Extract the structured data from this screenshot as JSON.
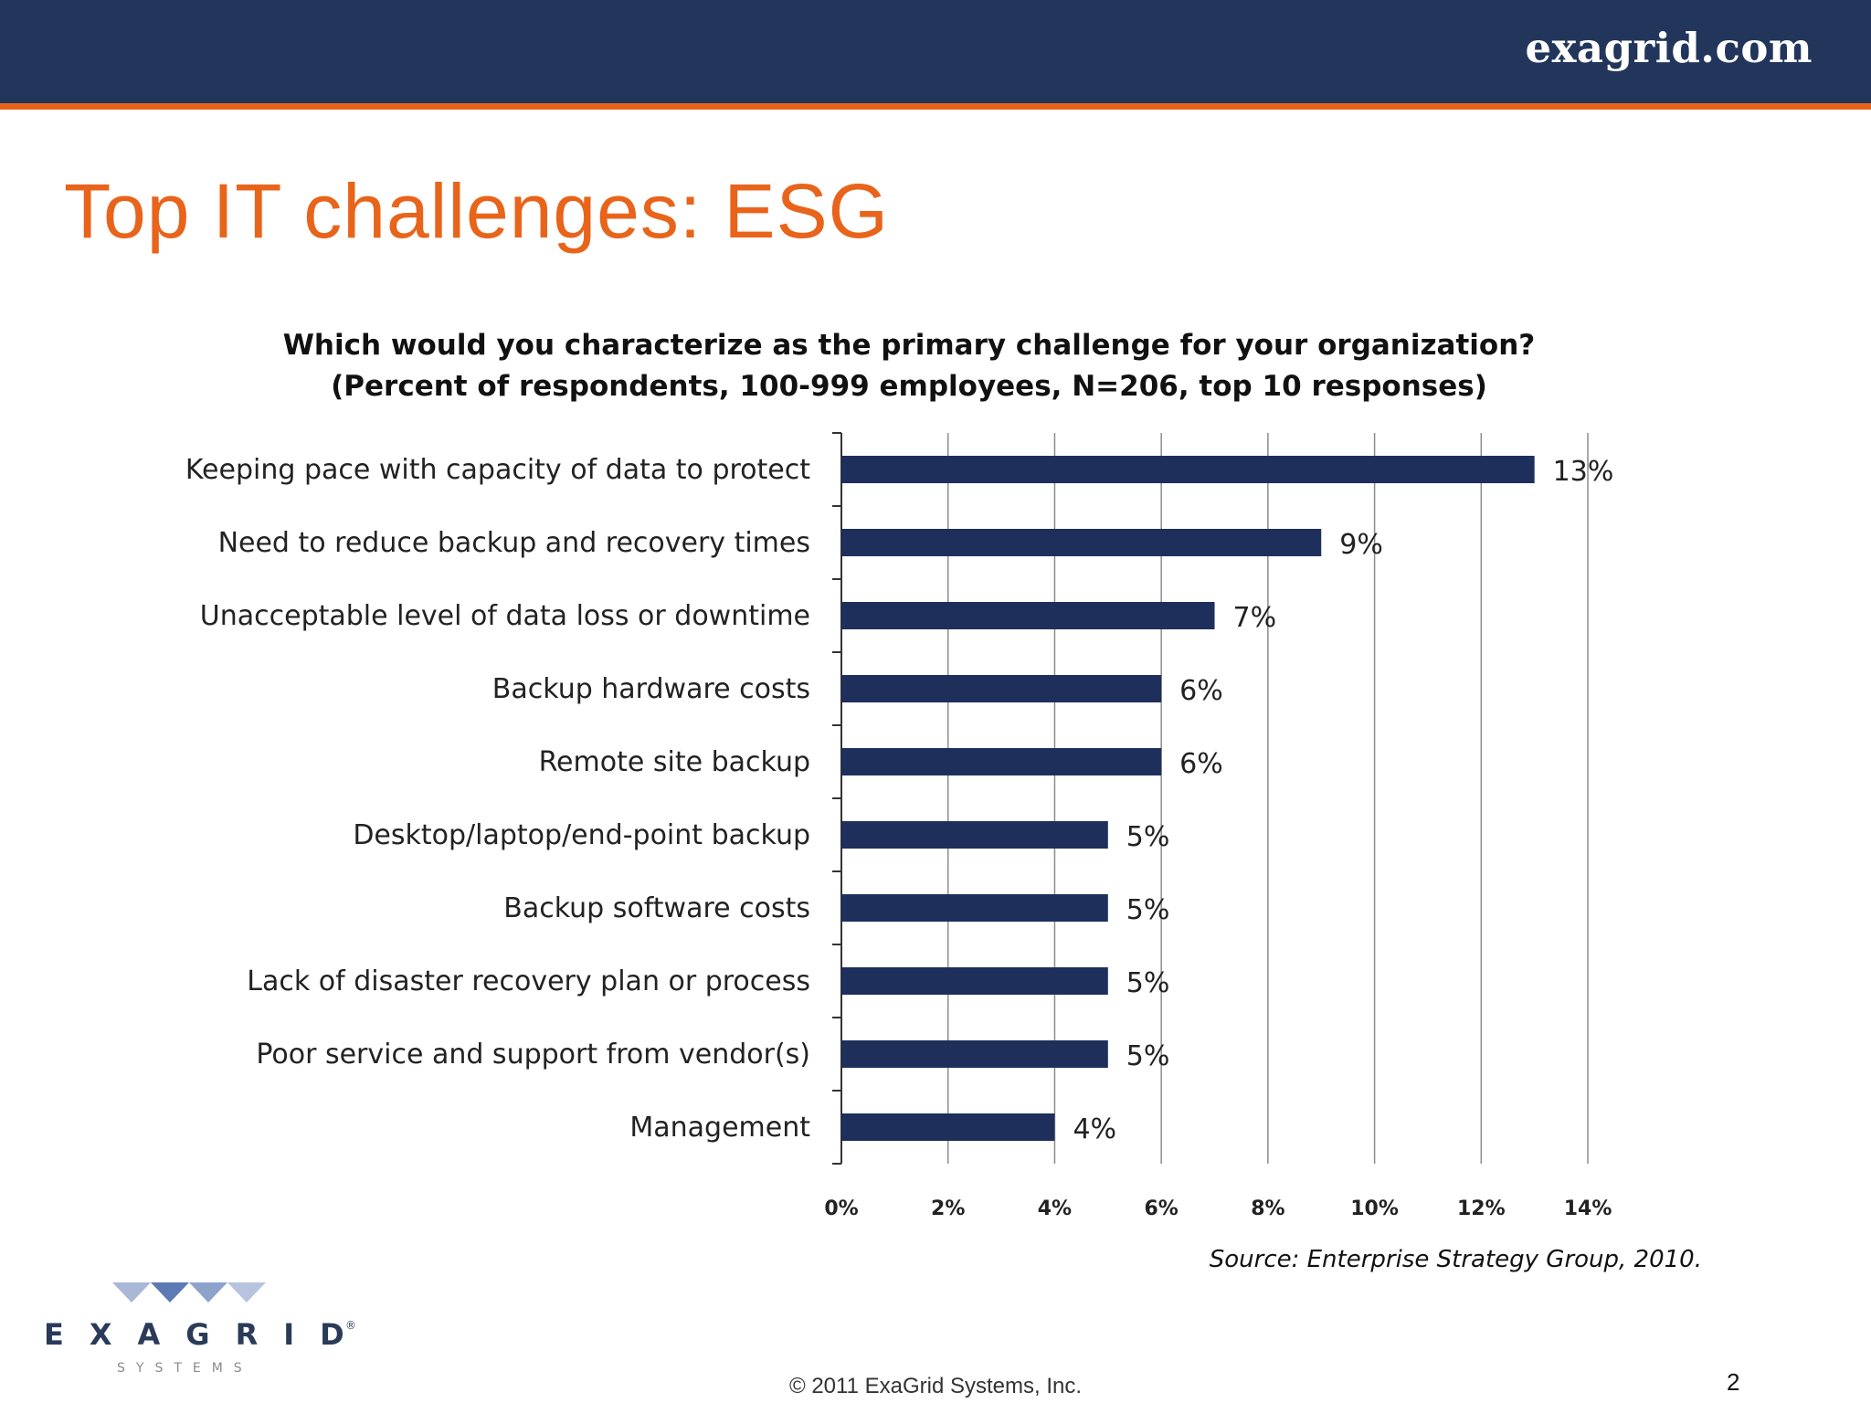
{
  "header": {
    "site_url": "exagrid.com",
    "colors": {
      "bar": "#22365c",
      "accent_stripe": "#e8641b"
    }
  },
  "slide": {
    "title": "Top IT challenges: ESG",
    "title_color": "#e8641b",
    "source": "Source: Enterprise Strategy Group, 2010.",
    "copyright": "© 2011 ExaGrid Systems, Inc.",
    "page_number": "2"
  },
  "logo": {
    "wordmark": "EXAGRID",
    "tagline": "SYSTEMS",
    "registered": "®"
  },
  "chart_data": {
    "type": "bar",
    "orientation": "horizontal",
    "title_line1": "Which would you characterize as the primary challenge for your organization?",
    "title_line2": "(Percent of respondents, 100-999 employees, N=206, top 10 responses)",
    "categories": [
      "Keeping pace with capacity of data to protect",
      "Need to reduce backup and recovery times",
      "Unacceptable level of data loss or downtime",
      "Backup hardware costs",
      "Remote site backup",
      "Desktop/laptop/end-point backup",
      "Backup software costs",
      "Lack of disaster recovery plan or process",
      "Poor service and support from vendor(s)",
      "Management"
    ],
    "values": [
      13,
      9,
      7,
      6,
      6,
      5,
      5,
      5,
      5,
      4
    ],
    "value_labels": [
      "13%",
      "9%",
      "7%",
      "6%",
      "6%",
      "5%",
      "5%",
      "5%",
      "5%",
      "4%"
    ],
    "xlim": [
      0,
      14
    ],
    "xticks": [
      0,
      2,
      4,
      6,
      8,
      10,
      12,
      14
    ],
    "xtick_labels": [
      "0%",
      "2%",
      "4%",
      "6%",
      "8%",
      "10%",
      "12%",
      "14%"
    ],
    "grid": true,
    "bar_color": "#1f2f5c"
  }
}
